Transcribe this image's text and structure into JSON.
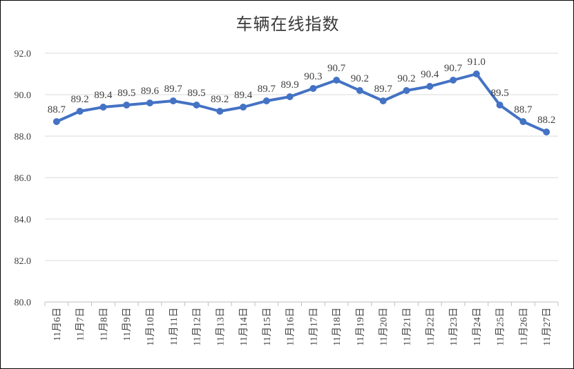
{
  "chart_data": {
    "type": "line",
    "title": "车辆在线指数",
    "categories": [
      "11月6日",
      "11月7日",
      "11月8日",
      "11月9日",
      "11月10日",
      "11月11日",
      "11月12日",
      "11月13日",
      "11月14日",
      "11月15日",
      "11月16日",
      "11月17日",
      "11月18日",
      "11月19日",
      "11月20日",
      "11月21日",
      "11月22日",
      "11月23日",
      "11月24日",
      "11月25日",
      "11月26日",
      "11月27日"
    ],
    "values": [
      88.7,
      89.2,
      89.4,
      89.5,
      89.6,
      89.7,
      89.5,
      89.2,
      89.4,
      89.7,
      89.9,
      90.3,
      90.7,
      90.2,
      89.7,
      90.2,
      90.4,
      90.7,
      91.0,
      89.5,
      88.7,
      88.2
    ],
    "data_labels": [
      "88.7",
      "89.2",
      "89.4",
      "89.5",
      "89.6",
      "89.7",
      "89.5",
      "89.2",
      "89.4",
      "89.7",
      "89.9",
      "90.3",
      "90.7",
      "90.2",
      "89.7",
      "90.2",
      "90.4",
      "90.7",
      "91.0",
      "89.5",
      "88.7",
      "88.2"
    ],
    "yticks": [
      "80.0",
      "82.0",
      "84.0",
      "86.0",
      "88.0",
      "90.0",
      "92.0"
    ],
    "ylim": [
      80,
      92
    ],
    "xlabel": "",
    "ylabel": "",
    "grid": true,
    "legend": "none",
    "line_color": "#4472C4"
  }
}
